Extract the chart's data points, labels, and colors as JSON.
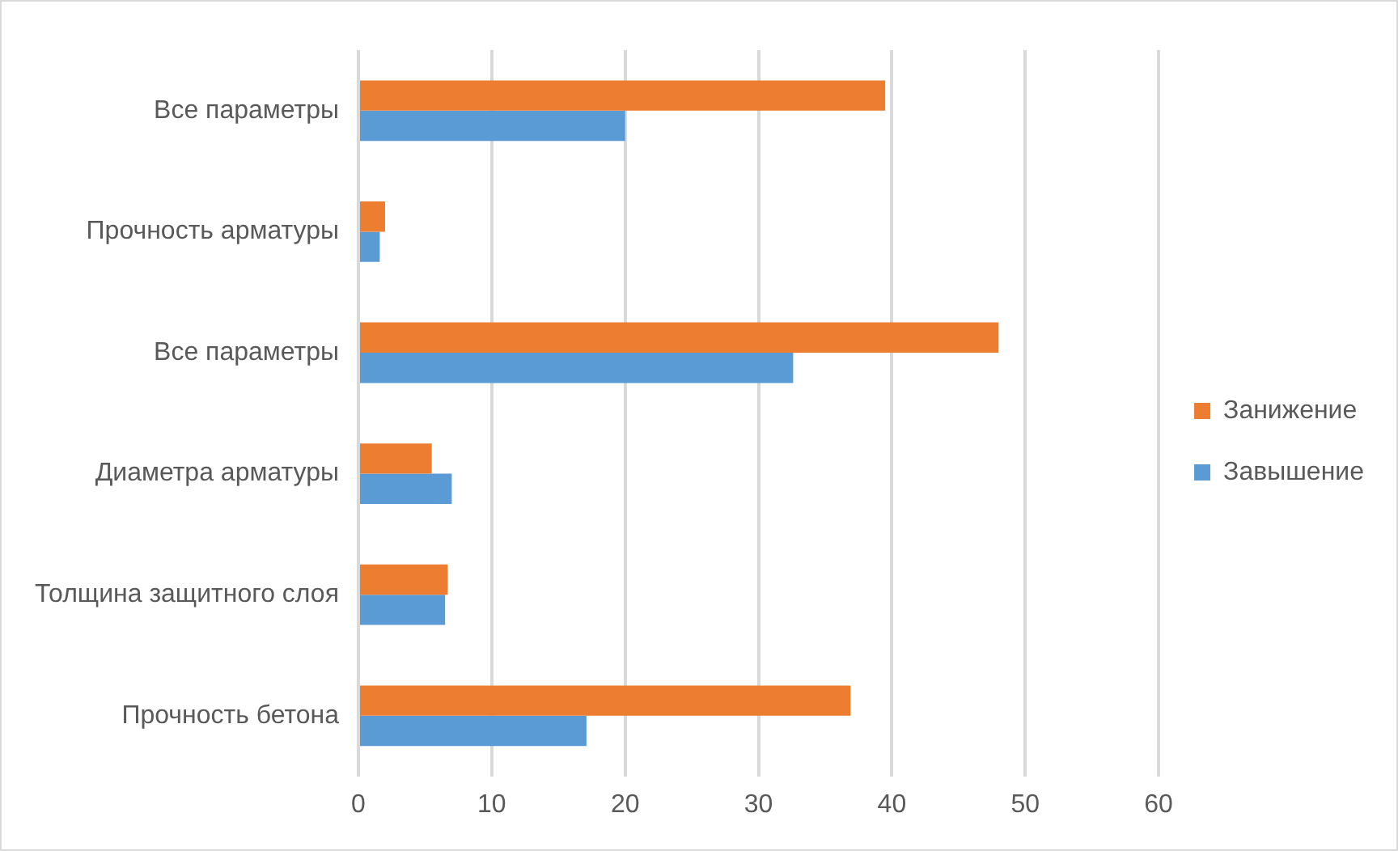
{
  "chart_data": {
    "type": "bar",
    "orientation": "horizontal",
    "categories": [
      "Все параметры",
      "Прочность арматуры",
      "Все параметры",
      "Диаметра арматуры",
      "Толщина защитного слоя",
      "Прочность бетона"
    ],
    "series": [
      {
        "name": "Занижение",
        "color": "#ed7d31",
        "values": [
          39.5,
          2.0,
          48.0,
          5.5,
          6.7,
          36.9
        ]
      },
      {
        "name": "Завышение",
        "color": "#5b9bd5",
        "values": [
          20.0,
          1.6,
          32.6,
          7.0,
          6.5,
          17.1
        ]
      }
    ],
    "xlim": [
      0,
      60
    ],
    "xticks": [
      0,
      10,
      20,
      30,
      40,
      50,
      60
    ],
    "grid": "x",
    "legend": "right"
  }
}
